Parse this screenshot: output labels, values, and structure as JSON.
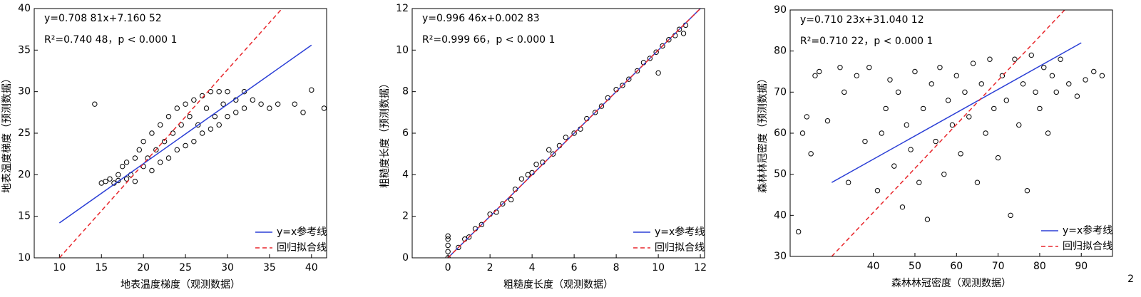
{
  "chart_data": [
    {
      "type": "scatter",
      "xlabel": "地表温度梯度（观测数据）",
      "ylabel": "地表温度梯度（预测数据）",
      "annotations": [
        "y=0.708 81x+7.160 52",
        "R²=0.740 48，p < 0.000 1"
      ],
      "xlim": [
        7,
        41.8
      ],
      "ylim": [
        10,
        40
      ],
      "xticks": [
        10,
        15,
        20,
        25,
        30,
        35,
        40
      ],
      "yticks": [
        10,
        15,
        20,
        25,
        30,
        35,
        40
      ],
      "legend": "lower right",
      "points": {
        "color": "#000000",
        "x": [
          14.2,
          15,
          15.5,
          16,
          16.5,
          17,
          17,
          17.5,
          18,
          18,
          18.5,
          19,
          19,
          19.5,
          20,
          20,
          20.5,
          21,
          21,
          21.5,
          22,
          22,
          22.5,
          23,
          23,
          23.5,
          24,
          24,
          24.5,
          25,
          25,
          25.5,
          26,
          26,
          26.5,
          27,
          27,
          27.5,
          28,
          28,
          28.5,
          29,
          29,
          29.5,
          30,
          30,
          31,
          31,
          32,
          32,
          33,
          34,
          35,
          36,
          38,
          39,
          40,
          41.5
        ],
        "y": [
          28.5,
          19,
          19.2,
          19.5,
          19,
          20,
          19.3,
          21,
          19.5,
          21.5,
          20,
          22,
          19.2,
          23,
          21,
          24,
          22,
          25,
          20.5,
          23,
          26,
          21.5,
          24,
          27,
          22,
          25,
          28,
          23,
          26,
          28.5,
          23.5,
          27,
          29,
          24,
          26,
          29.5,
          25,
          28,
          30,
          25.5,
          27,
          30,
          26,
          28.5,
          30,
          27,
          29,
          27.5,
          30,
          28,
          29,
          28.5,
          28,
          28.5,
          28.5,
          27.5,
          30.2,
          28
        ]
      },
      "lines": [
        {
          "name": "y=x参考线",
          "color": "#2b3fd6",
          "dashed": false,
          "x": [
            10,
            40
          ],
          "y": [
            14.2,
            35.6
          ]
        },
        {
          "name": "回归拟合线",
          "color": "#e8262b",
          "dashed": true,
          "x": [
            10,
            36.5
          ],
          "y": [
            10,
            40
          ]
        }
      ]
    },
    {
      "type": "scatter",
      "xlabel": "粗糙度长度（观测数据）",
      "ylabel": "粗糙度长度（预测数据）",
      "annotations": [
        "y=0.996 46x+0.002 83",
        "R²=0.999 66，p < 0.000 1"
      ],
      "xlim": [
        -1.7,
        12.2
      ],
      "ylim": [
        0,
        12
      ],
      "xticks": [
        0,
        2,
        4,
        6,
        8,
        10,
        12
      ],
      "yticks": [
        0,
        2,
        4,
        6,
        8,
        10,
        12
      ],
      "legend": "lower right",
      "points": {
        "color": "#000000",
        "x": [
          0,
          0,
          0,
          0,
          0,
          0.5,
          0.8,
          1,
          1.3,
          1.6,
          2,
          2.3,
          2.6,
          3,
          3.2,
          3.5,
          3.8,
          4,
          4.2,
          4.5,
          4.8,
          5,
          5.3,
          5.6,
          6,
          6.3,
          6.6,
          7,
          7.3,
          7.6,
          8,
          8.3,
          8.6,
          9,
          9.3,
          9.6,
          9.9,
          10,
          10.2,
          10.5,
          10.8,
          11,
          11.2,
          11.3
        ],
        "y": [
          0,
          0.3,
          0.6,
          0.9,
          1.05,
          0.5,
          0.9,
          1,
          1.4,
          1.6,
          2.1,
          2.2,
          2.6,
          2.8,
          3.3,
          3.8,
          4,
          4.1,
          4.5,
          4.6,
          5.2,
          5,
          5.4,
          5.8,
          6,
          6.2,
          6.7,
          7,
          7.3,
          7.7,
          8.1,
          8.3,
          8.6,
          9,
          9.4,
          9.6,
          9.9,
          8.9,
          10.2,
          10.5,
          10.7,
          11,
          10.8,
          11.2
        ]
      },
      "lines": [
        {
          "name": "y=x参考线",
          "color": "#2b3fd6",
          "dashed": false,
          "x": [
            0,
            12.1
          ],
          "y": [
            0,
            12.1
          ]
        },
        {
          "name": "回归拟合线",
          "color": "#e8262b",
          "dashed": true,
          "x": [
            0,
            12
          ],
          "y": [
            0,
            12
          ]
        }
      ]
    },
    {
      "type": "scatter",
      "xlabel": "森林林冠密度（观测数据）",
      "ylabel": "森林林冠密度（预测数据）",
      "annotations": [
        "y=0.710 23x+31.040 12",
        "R²=0.710 22，p < 0.000 1"
      ],
      "xlim": [
        20,
        97.5
      ],
      "ylim": [
        30,
        90
      ],
      "xticks": [
        40,
        50,
        60,
        70,
        80,
        90
      ],
      "yticks": [
        30,
        40,
        50,
        60,
        70,
        80,
        90
      ],
      "legend": "lower right",
      "points": {
        "color": "#000000",
        "x": [
          22,
          23,
          24,
          25,
          26,
          27,
          29,
          32,
          33,
          34,
          36,
          38,
          39,
          41,
          42,
          43,
          44,
          45,
          46,
          47,
          48,
          49,
          50,
          51,
          52,
          53,
          54,
          55,
          56,
          57,
          58,
          59,
          60,
          61,
          62,
          63,
          64,
          65,
          66,
          67,
          68,
          69,
          70,
          71,
          72,
          73,
          74,
          75,
          76,
          77,
          78,
          79,
          80,
          81,
          82,
          83,
          84,
          85,
          87,
          89,
          93,
          95,
          91
        ],
        "y": [
          36,
          60,
          64,
          55,
          74,
          75,
          63,
          76,
          70,
          48,
          74,
          58,
          76,
          46,
          60,
          66,
          73,
          52,
          70,
          42,
          62,
          56,
          75,
          48,
          66,
          39,
          72,
          58,
          76,
          50,
          68,
          62,
          74,
          55,
          70,
          64,
          77,
          48,
          72,
          60,
          78,
          66,
          54,
          74,
          68,
          40,
          78,
          62,
          72,
          46,
          79,
          70,
          66,
          76,
          60,
          74,
          70,
          78,
          72,
          69,
          75,
          74,
          73
        ]
      },
      "lines": [
        {
          "name": "y=x参考线",
          "color": "#2b3fd6",
          "dashed": false,
          "x": [
            30,
            90
          ],
          "y": [
            48,
            82
          ]
        },
        {
          "name": "回归拟合线",
          "color": "#e8262b",
          "dashed": true,
          "x": [
            30,
            86
          ],
          "y": [
            30,
            90
          ]
        }
      ]
    }
  ],
  "corner_label": "2"
}
